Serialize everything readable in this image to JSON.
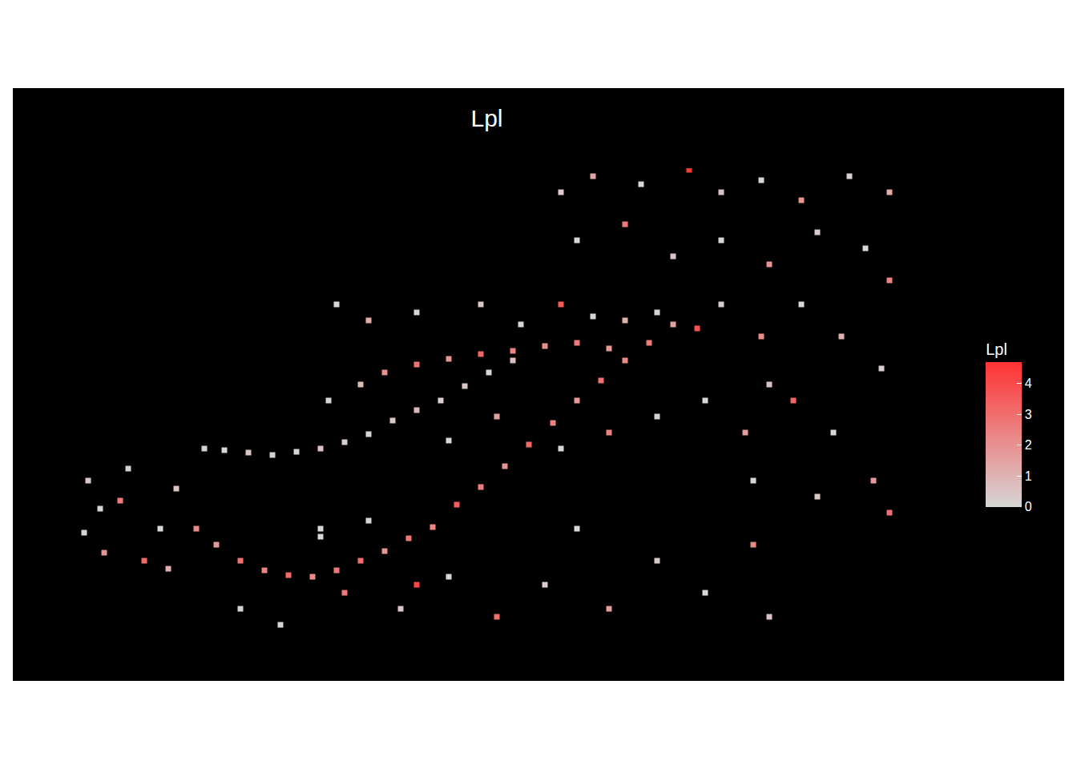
{
  "chart_data": {
    "type": "scatter",
    "title": "Lpl",
    "tick_labels": false,
    "grid": false,
    "xlim": [
      90,
      1125
    ],
    "ylim": [
      0,
      590
    ],
    "color": "#ff3333",
    "colorbar_title": "Lpl",
    "color_range": [
      0,
      4.7
    ],
    "color_ticks": [
      0,
      1,
      2,
      3,
      4
    ],
    "x": [
      110,
      150,
      200,
      130,
      220,
      105,
      180,
      160,
      210,
      125,
      255,
      280,
      310,
      340,
      370,
      400,
      430,
      460,
      490,
      520,
      550,
      580,
      610,
      640,
      245,
      270,
      300,
      330,
      360,
      390,
      420,
      450,
      480,
      510,
      540,
      570,
      600,
      630,
      660,
      690,
      720,
      750,
      780,
      810,
      840,
      480,
      520,
      560,
      600,
      640,
      680,
      720,
      760,
      420,
      460,
      520,
      600,
      650,
      700,
      740,
      780,
      820,
      870,
      900,
      950,
      410,
      450,
      560,
      620,
      700,
      760,
      820,
      880,
      930,
      960,
      300,
      350,
      400,
      430,
      500,
      560,
      620,
      680,
      720,
      760,
      820,
      880,
      940,
      960,
      400,
      460,
      520,
      700,
      740,
      800,
      860,
      900,
      950,
      1000,
      1060,
      1110,
      720,
      780,
      840,
      900,
      960,
      1020,
      1080,
      1110,
      1000,
      1050,
      1100,
      990,
      1040,
      1090,
      1020,
      1110,
      940
    ],
    "y": [
      200,
      175,
      140,
      110,
      190,
      135,
      100,
      215,
      90,
      165,
      240,
      238,
      235,
      232,
      236,
      240,
      248,
      258,
      275,
      288,
      300,
      318,
      335,
      350,
      140,
      120,
      100,
      88,
      82,
      80,
      88,
      100,
      112,
      128,
      142,
      170,
      192,
      218,
      245,
      272,
      300,
      325,
      350,
      372,
      395,
      335,
      345,
      352,
      358,
      362,
      368,
      372,
      365,
      420,
      400,
      410,
      420,
      395,
      420,
      405,
      400,
      410,
      390,
      420,
      380,
      300,
      320,
      250,
      280,
      240,
      260,
      280,
      300,
      260,
      320,
      40,
      20,
      140,
      60,
      40,
      80,
      30,
      70,
      140,
      40,
      100,
      60,
      120,
      30,
      130,
      150,
      70,
      560,
      580,
      570,
      588,
      560,
      575,
      550,
      580,
      560,
      500,
      520,
      480,
      500,
      470,
      510,
      490,
      450,
      420,
      380,
      340,
      300,
      260,
      200,
      180,
      160,
      200
    ],
    "values": [
      0.4,
      2.6,
      0,
      1.9,
      0.6,
      0,
      3.1,
      0.2,
      1.2,
      0,
      0.3,
      0,
      0.5,
      0.2,
      0,
      0.6,
      0.3,
      0,
      0.4,
      0.8,
      0.2,
      0.5,
      0,
      0.7,
      2.2,
      1.8,
      2.9,
      2.4,
      3.2,
      2.1,
      2.7,
      3.0,
      1.9,
      2.8,
      2.3,
      3.4,
      2.6,
      2.0,
      3.1,
      2.5,
      1.7,
      2.9,
      2.2,
      2.6,
      1.5,
      2.1,
      2.8,
      1.9,
      3.3,
      2.4,
      2.0,
      2.7,
      1.8,
      0,
      1.2,
      0,
      0.4,
      0,
      3.6,
      0,
      1.1,
      0,
      3.8,
      0.3,
      2.2,
      0,
      0.8,
      0,
      1.5,
      0,
      2.4,
      0.2,
      0,
      1.7,
      0.5,
      0.2,
      0,
      0,
      2.7,
      0.5,
      0,
      3.0,
      0.3,
      0,
      1.6,
      0.4,
      0,
      2.3,
      0.6,
      0,
      0,
      4.2,
      0.3,
      1.4,
      0,
      4.5,
      0.6,
      0,
      2.0,
      0.2,
      1.3,
      0,
      2.6,
      0.4,
      0,
      1.9,
      0.3,
      0,
      2.4,
      0,
      1.1,
      0.2,
      3.3,
      0,
      1.8,
      0.4,
      2.9,
      0
    ]
  }
}
